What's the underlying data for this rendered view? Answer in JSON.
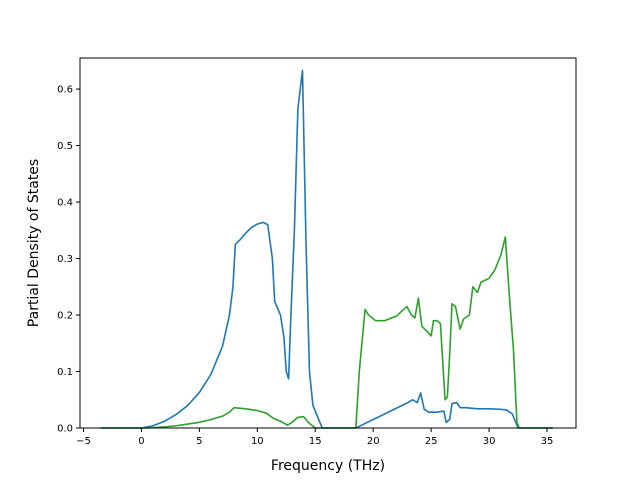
{
  "chart_data": {
    "type": "line",
    "title": "",
    "xlabel": "Frequency (THz)",
    "ylabel": "Partial Density of States",
    "xlim": [
      -5.3,
      37.5
    ],
    "ylim": [
      0,
      0.655
    ],
    "xticks": [
      -5,
      0,
      5,
      10,
      15,
      20,
      25,
      30,
      35
    ],
    "xtick_labels": [
      "−5",
      "0",
      "5",
      "10",
      "15",
      "20",
      "25",
      "30",
      "35"
    ],
    "yticks": [
      0.0,
      0.1,
      0.2,
      0.3,
      0.4,
      0.5,
      0.6
    ],
    "ytick_labels": [
      "0.0",
      "0.1",
      "0.2",
      "0.3",
      "0.4",
      "0.5",
      "0.6"
    ],
    "grid": false,
    "legend": "none",
    "series": [
      {
        "color": "#1f77b4",
        "points": [
          [
            -3.5,
            0.0
          ],
          [
            0.0,
            0.0
          ],
          [
            1.0,
            0.004
          ],
          [
            2.0,
            0.012
          ],
          [
            3.0,
            0.024
          ],
          [
            4.0,
            0.04
          ],
          [
            5.0,
            0.063
          ],
          [
            6.0,
            0.095
          ],
          [
            7.0,
            0.145
          ],
          [
            7.6,
            0.2
          ],
          [
            7.9,
            0.25
          ],
          [
            8.1,
            0.325
          ],
          [
            8.5,
            0.333
          ],
          [
            9.0,
            0.345
          ],
          [
            9.5,
            0.355
          ],
          [
            10.0,
            0.361
          ],
          [
            10.5,
            0.364
          ],
          [
            10.9,
            0.36
          ],
          [
            11.3,
            0.3
          ],
          [
            11.5,
            0.224
          ],
          [
            12.0,
            0.2
          ],
          [
            12.3,
            0.16
          ],
          [
            12.5,
            0.1
          ],
          [
            12.7,
            0.087
          ],
          [
            12.9,
            0.2
          ],
          [
            13.2,
            0.35
          ],
          [
            13.5,
            0.565
          ],
          [
            13.9,
            0.633
          ],
          [
            14.2,
            0.33
          ],
          [
            14.5,
            0.1
          ],
          [
            14.8,
            0.04
          ],
          [
            15.4,
            0.01
          ],
          [
            15.6,
            0.0
          ],
          [
            18.5,
            0.0
          ],
          [
            19.0,
            0.005
          ],
          [
            20.0,
            0.015
          ],
          [
            21.0,
            0.025
          ],
          [
            22.0,
            0.035
          ],
          [
            23.0,
            0.045
          ],
          [
            23.4,
            0.05
          ],
          [
            23.8,
            0.045
          ],
          [
            24.1,
            0.062
          ],
          [
            24.4,
            0.033
          ],
          [
            24.8,
            0.028
          ],
          [
            25.5,
            0.028
          ],
          [
            26.1,
            0.03
          ],
          [
            26.3,
            0.01
          ],
          [
            26.6,
            0.015
          ],
          [
            26.8,
            0.043
          ],
          [
            27.2,
            0.045
          ],
          [
            27.5,
            0.036
          ],
          [
            28.0,
            0.036
          ],
          [
            29.0,
            0.034
          ],
          [
            30.0,
            0.034
          ],
          [
            31.0,
            0.033
          ],
          [
            31.5,
            0.032
          ],
          [
            32.0,
            0.025
          ],
          [
            32.5,
            0.0
          ],
          [
            35.5,
            0.0
          ]
        ]
      },
      {
        "color": "#2ca02c",
        "points": [
          [
            -3.5,
            0.0
          ],
          [
            0.5,
            0.0
          ],
          [
            2.0,
            0.002
          ],
          [
            3.0,
            0.004
          ],
          [
            4.0,
            0.007
          ],
          [
            5.0,
            0.01
          ],
          [
            6.0,
            0.015
          ],
          [
            7.0,
            0.021
          ],
          [
            7.6,
            0.028
          ],
          [
            8.0,
            0.036
          ],
          [
            9.0,
            0.034
          ],
          [
            10.0,
            0.031
          ],
          [
            10.8,
            0.026
          ],
          [
            11.4,
            0.017
          ],
          [
            12.0,
            0.012
          ],
          [
            12.6,
            0.005
          ],
          [
            13.0,
            0.01
          ],
          [
            13.5,
            0.019
          ],
          [
            14.0,
            0.02
          ],
          [
            14.4,
            0.01
          ],
          [
            15.0,
            0.0
          ],
          [
            18.5,
            0.0
          ],
          [
            18.8,
            0.1
          ],
          [
            19.3,
            0.21
          ],
          [
            19.6,
            0.2
          ],
          [
            20.2,
            0.19
          ],
          [
            21.0,
            0.19
          ],
          [
            22.0,
            0.198
          ],
          [
            22.9,
            0.215
          ],
          [
            23.3,
            0.2
          ],
          [
            23.6,
            0.195
          ],
          [
            23.9,
            0.23
          ],
          [
            24.2,
            0.18
          ],
          [
            24.7,
            0.17
          ],
          [
            25.0,
            0.163
          ],
          [
            25.2,
            0.19
          ],
          [
            25.5,
            0.19
          ],
          [
            25.8,
            0.185
          ],
          [
            26.2,
            0.05
          ],
          [
            26.4,
            0.055
          ],
          [
            26.6,
            0.13
          ],
          [
            26.8,
            0.22
          ],
          [
            27.1,
            0.215
          ],
          [
            27.5,
            0.175
          ],
          [
            27.8,
            0.193
          ],
          [
            28.3,
            0.2
          ],
          [
            28.6,
            0.25
          ],
          [
            29.0,
            0.24
          ],
          [
            29.3,
            0.258
          ],
          [
            30.0,
            0.265
          ],
          [
            30.5,
            0.28
          ],
          [
            31.0,
            0.305
          ],
          [
            31.4,
            0.338
          ],
          [
            31.8,
            0.22
          ],
          [
            32.1,
            0.14
          ],
          [
            32.4,
            0.01
          ],
          [
            32.6,
            0.0
          ],
          [
            35.5,
            0.0
          ]
        ]
      }
    ]
  }
}
